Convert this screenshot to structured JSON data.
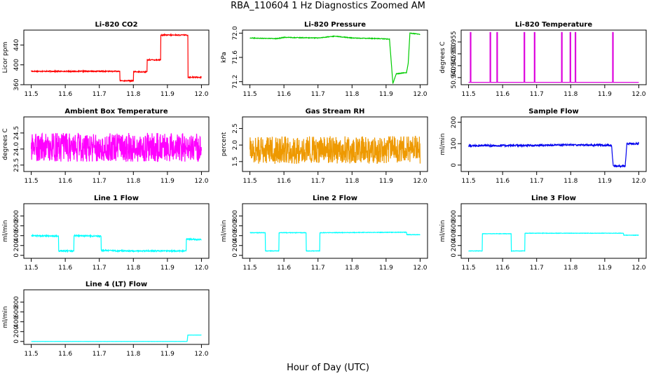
{
  "figure": {
    "title": "RBA_110604  1 Hz Diagnostics Zoomed AM",
    "xlabel": "Hour of Day (UTC)"
  },
  "chart_data": [
    {
      "type": "line",
      "title": "Li-820 CO2",
      "xlabel": "",
      "ylabel": "Licor ppm",
      "xlim": [
        11.5,
        12.0
      ],
      "ylim": [
        360,
        470
      ],
      "xticks": [
        "11.5",
        "11.6",
        "11.7",
        "11.8",
        "11.9",
        "12.0"
      ],
      "yticks": [
        "360",
        "400",
        "440"
      ],
      "color": "#ff0000",
      "noise": 1,
      "series": [
        {
          "x": [
            11.5,
            11.76,
            11.76,
            11.8,
            11.8,
            11.84,
            11.84,
            11.88,
            11.88,
            11.96,
            11.96,
            12.0
          ],
          "y": [
            387,
            387,
            368,
            368,
            386,
            386,
            410,
            410,
            460,
            460,
            375,
            375
          ]
        }
      ]
    },
    {
      "type": "line",
      "title": "Li-820 Pressure",
      "xlabel": "",
      "ylabel": "kPa",
      "xlim": [
        11.5,
        12.0
      ],
      "ylim": [
        71.15,
        72.05
      ],
      "xticks": [
        "11.5",
        "11.6",
        "11.7",
        "11.8",
        "11.9",
        "12.0"
      ],
      "yticks": [
        "71.2",
        "71.6",
        "72.0"
      ],
      "color": "#00cc00",
      "noise": 0.005,
      "series": [
        {
          "x": [
            11.5,
            11.58,
            11.6,
            11.7,
            11.75,
            11.8,
            11.88,
            11.91,
            11.92,
            11.93,
            11.96,
            11.965,
            11.97,
            12.0
          ],
          "y": [
            71.92,
            71.91,
            71.93,
            71.92,
            71.95,
            71.92,
            71.91,
            71.9,
            71.17,
            71.33,
            71.35,
            71.5,
            72.0,
            71.98
          ]
        }
      ]
    },
    {
      "type": "line",
      "title": "Li-820 Temperature",
      "xlabel": "",
      "ylabel": "degrees C",
      "xlim": [
        11.5,
        12.0
      ],
      "ylim": [
        50.937,
        50.96
      ],
      "xticks": [
        "11.5",
        "11.6",
        "11.7",
        "11.8",
        "11.9",
        "12.0"
      ],
      "yticks": [
        "50.940",
        "50.945",
        "50.950",
        "50.955"
      ],
      "color": "#dd00dd",
      "noise": 0,
      "series": [
        {
          "x": [
            11.5,
            11.505,
            11.505,
            11.507,
            11.507,
            11.563,
            11.563,
            11.565,
            11.565,
            11.583,
            11.583,
            11.585,
            11.585,
            11.663,
            11.663,
            11.665,
            11.665,
            11.693,
            11.693,
            11.695,
            11.695,
            11.773,
            11.773,
            11.775,
            11.775,
            11.798,
            11.798,
            11.8,
            11.8,
            11.813,
            11.813,
            11.815,
            11.815,
            11.923,
            11.923,
            11.925,
            11.925,
            12.0
          ],
          "y": [
            50.938,
            50.938,
            50.959,
            50.959,
            50.938,
            50.938,
            50.959,
            50.959,
            50.938,
            50.938,
            50.959,
            50.959,
            50.938,
            50.938,
            50.959,
            50.959,
            50.938,
            50.938,
            50.959,
            50.959,
            50.938,
            50.938,
            50.959,
            50.959,
            50.938,
            50.938,
            50.959,
            50.959,
            50.938,
            50.938,
            50.959,
            50.959,
            50.938,
            50.938,
            50.959,
            50.959,
            50.938,
            50.938
          ]
        }
      ]
    },
    {
      "type": "line",
      "title": "Ambient Box Temperature",
      "xlabel": "",
      "ylabel": "degrees C",
      "xlim": [
        11.5,
        12.0
      ],
      "ylim": [
        23.3,
        25.0
      ],
      "xticks": [
        "11.5",
        "11.6",
        "11.7",
        "11.8",
        "11.9",
        "12.0"
      ],
      "yticks": [
        "23.5",
        "24.0",
        "24.5"
      ],
      "color": "#ff00ff",
      "noise": 0.45,
      "series": [
        {
          "x": [
            11.5,
            12.0
          ],
          "y": [
            24.05,
            24.05
          ]
        }
      ]
    },
    {
      "type": "line",
      "title": "Gas Stream RH",
      "xlabel": "",
      "ylabel": "percent",
      "xlim": [
        11.5,
        12.0
      ],
      "ylim": [
        1.2,
        2.85
      ],
      "xticks": [
        "11.5",
        "11.6",
        "11.7",
        "11.8",
        "11.9",
        "12.0"
      ],
      "yticks": [
        "1.5",
        "2.0",
        "2.5"
      ],
      "color": "#ee9900",
      "noise": 0.42,
      "series": [
        {
          "x": [
            11.5,
            12.0
          ],
          "y": [
            1.85,
            1.85
          ]
        }
      ]
    },
    {
      "type": "line",
      "title": "Sample Flow",
      "xlabel": "",
      "ylabel": "ml/min",
      "xlim": [
        11.5,
        12.0
      ],
      "ylim": [
        -30,
        225
      ],
      "xticks": [
        "11.5",
        "11.6",
        "11.7",
        "11.8",
        "11.9",
        "12.0"
      ],
      "yticks": [
        "0",
        "100",
        "200"
      ],
      "color": "#0000ee",
      "noise": 4,
      "series": [
        {
          "x": [
            11.5,
            11.7,
            11.8,
            11.92,
            11.925,
            11.96,
            11.965,
            12.0
          ],
          "y": [
            90,
            92,
            95,
            92,
            -5,
            -5,
            100,
            100
          ]
        }
      ]
    },
    {
      "type": "line",
      "title": "Line 1 Flow",
      "xlabel": "",
      "ylabel": "ml/min",
      "xlim": [
        11.5,
        12.0
      ],
      "ylim": [
        -60,
        1050
      ],
      "xticks": [
        "11.5",
        "11.6",
        "11.7",
        "11.8",
        "11.9",
        "12.0"
      ],
      "yticks": [
        "0",
        "200",
        "400",
        "600",
        "800"
      ],
      "color": "#00ffff",
      "noise": 12,
      "series": [
        {
          "x": [
            11.5,
            11.58,
            11.58,
            11.625,
            11.625,
            11.705,
            11.705,
            11.745,
            11.745,
            11.955,
            11.955,
            12.0
          ],
          "y": [
            400,
            390,
            90,
            90,
            400,
            390,
            100,
            100,
            90,
            90,
            330,
            320
          ]
        }
      ]
    },
    {
      "type": "line",
      "title": "Line 2 Flow",
      "xlabel": "",
      "ylabel": "ml/min",
      "xlim": [
        11.5,
        12.0
      ],
      "ylim": [
        -60,
        1050
      ],
      "xticks": [
        "11.5",
        "11.6",
        "11.7",
        "11.8",
        "11.9",
        "12.0"
      ],
      "yticks": [
        "0",
        "200",
        "400",
        "600",
        "800"
      ],
      "color": "#00ffff",
      "noise": 5,
      "series": [
        {
          "x": [
            11.5,
            11.545,
            11.545,
            11.585,
            11.585,
            11.665,
            11.665,
            11.705,
            11.705,
            11.96,
            11.96,
            12.0
          ],
          "y": [
            460,
            460,
            90,
            90,
            460,
            460,
            90,
            90,
            460,
            470,
            420,
            420
          ]
        }
      ]
    },
    {
      "type": "line",
      "title": "Line 3 Flow",
      "xlabel": "",
      "ylabel": "ml/min",
      "xlim": [
        11.5,
        12.0
      ],
      "ylim": [
        -60,
        1050
      ],
      "xticks": [
        "11.5",
        "11.6",
        "11.7",
        "11.8",
        "11.9",
        "12.0"
      ],
      "yticks": [
        "0",
        "200",
        "400",
        "600",
        "800"
      ],
      "color": "#00ffff",
      "noise": 4,
      "series": [
        {
          "x": [
            11.5,
            11.54,
            11.54,
            11.625,
            11.625,
            11.665,
            11.665,
            11.955,
            11.955,
            12.0
          ],
          "y": [
            90,
            90,
            440,
            440,
            90,
            90,
            450,
            450,
            410,
            410
          ]
        }
      ]
    },
    {
      "type": "line",
      "title": "Line 4 (LT) Flow",
      "xlabel": "",
      "ylabel": "ml/min",
      "xlim": [
        11.5,
        12.0
      ],
      "ylim": [
        -60,
        1050
      ],
      "xticks": [
        "11.5",
        "11.6",
        "11.7",
        "11.8",
        "11.9",
        "12.0"
      ],
      "yticks": [
        "0",
        "200",
        "400",
        "600",
        "800"
      ],
      "color": "#00ffff",
      "noise": 1,
      "series": [
        {
          "x": [
            11.5,
            11.958,
            11.96,
            12.0
          ],
          "y": [
            0,
            0,
            130,
            130
          ]
        }
      ]
    }
  ]
}
